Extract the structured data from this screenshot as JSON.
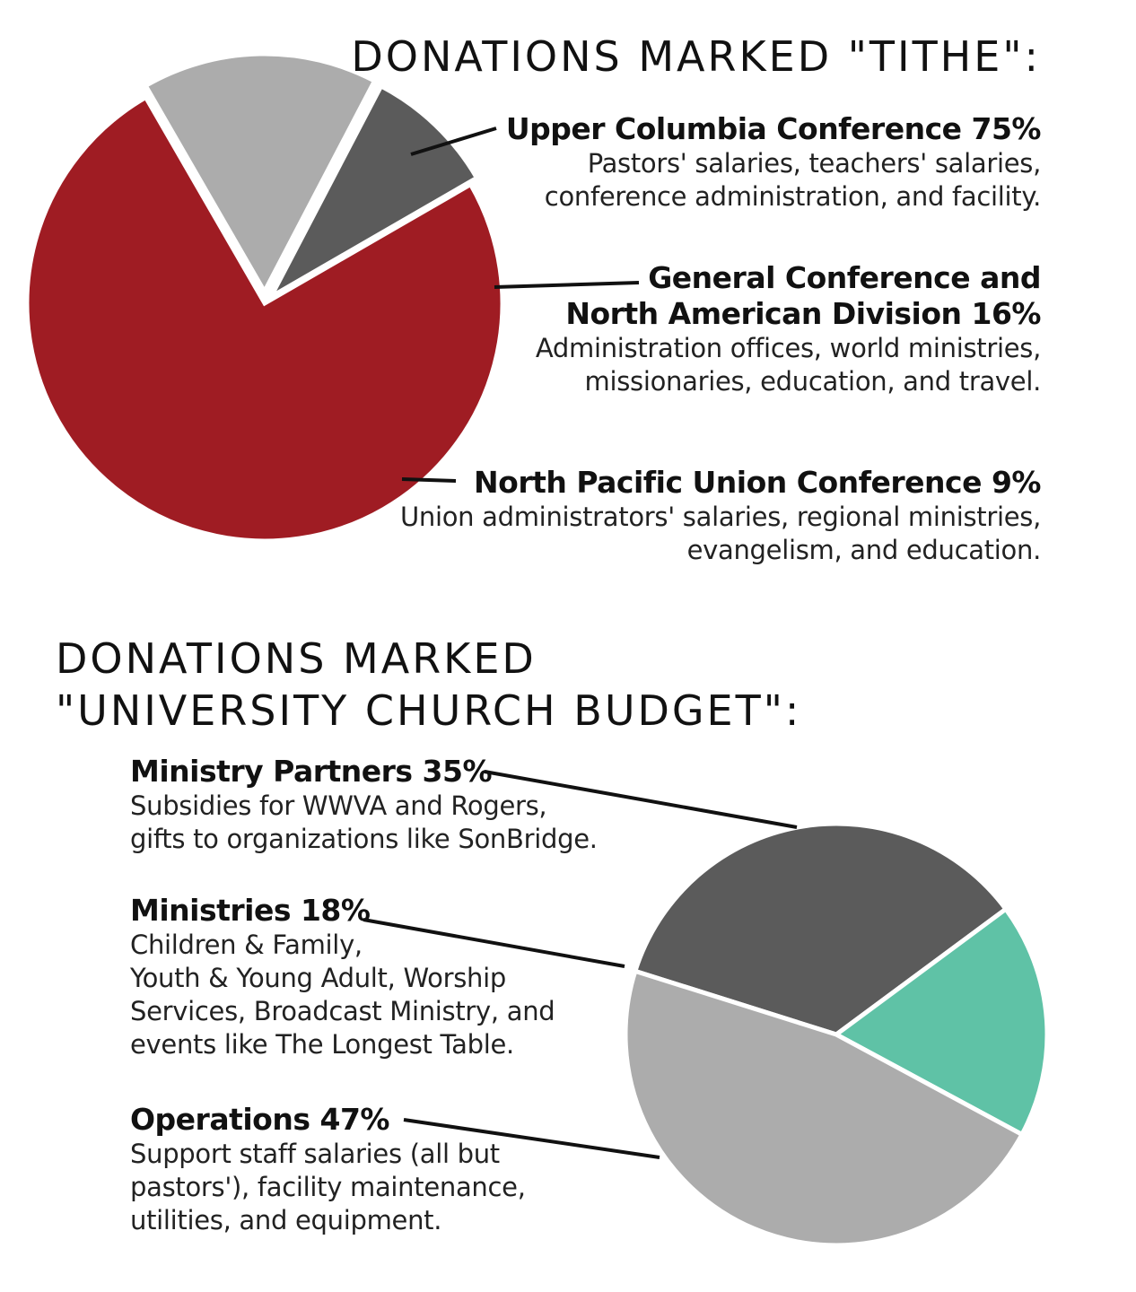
{
  "chart_data": [
    {
      "type": "pie",
      "title": "DONATIONS MARKED \"TITHE\":",
      "slices": [
        {
          "name": "Upper Columbia Conference",
          "value": 75,
          "label_lines": [
            "Upper Columbia Conference 75%"
          ],
          "description_lines": [
            "Pastors' salaries, teachers' salaries,",
            "conference administration, and facility."
          ],
          "color": "#9f1c23"
        },
        {
          "name": "General Conference and North American Division",
          "value": 16,
          "label_lines": [
            "General Conference and",
            "North American Division 16%"
          ],
          "description_lines": [
            "Administration offices, world ministries,",
            "missionaries, education, and travel."
          ],
          "color": "#acacac"
        },
        {
          "name": "North Pacific Union Conference",
          "value": 9,
          "label_lines": [
            "North Pacific Union Conference 9%"
          ],
          "description_lines": [
            "Union administrators' salaries, regional ministries,",
            "evangelism, and education."
          ],
          "color": "#5b5b5b"
        }
      ]
    },
    {
      "type": "pie",
      "title": "DONATIONS MARKED\n\"UNIVERSITY CHURCH BUDGET\":",
      "slices": [
        {
          "name": "Ministry Partners",
          "value": 35,
          "label_lines": [
            "Ministry Partners 35%"
          ],
          "description_lines": [
            "Subsidies for WWVA and Rogers,",
            "gifts to organizations like SonBridge."
          ],
          "color": "#5b5b5b"
        },
        {
          "name": "Ministries",
          "value": 18,
          "label_lines": [
            "Ministries 18%"
          ],
          "description_lines": [
            "Children & Family,",
            "Youth & Young Adult, Worship",
            "Services, Broadcast Ministry, and",
            "events like The Longest Table."
          ],
          "color": "#5fc2a6"
        },
        {
          "name": "Operations",
          "value": 47,
          "label_lines": [
            "Operations 47%"
          ],
          "description_lines": [
            "Support staff salaries (all but",
            "pastors'), facility maintenance,",
            "utilities, and equipment."
          ],
          "color": "#acacac"
        }
      ]
    }
  ]
}
